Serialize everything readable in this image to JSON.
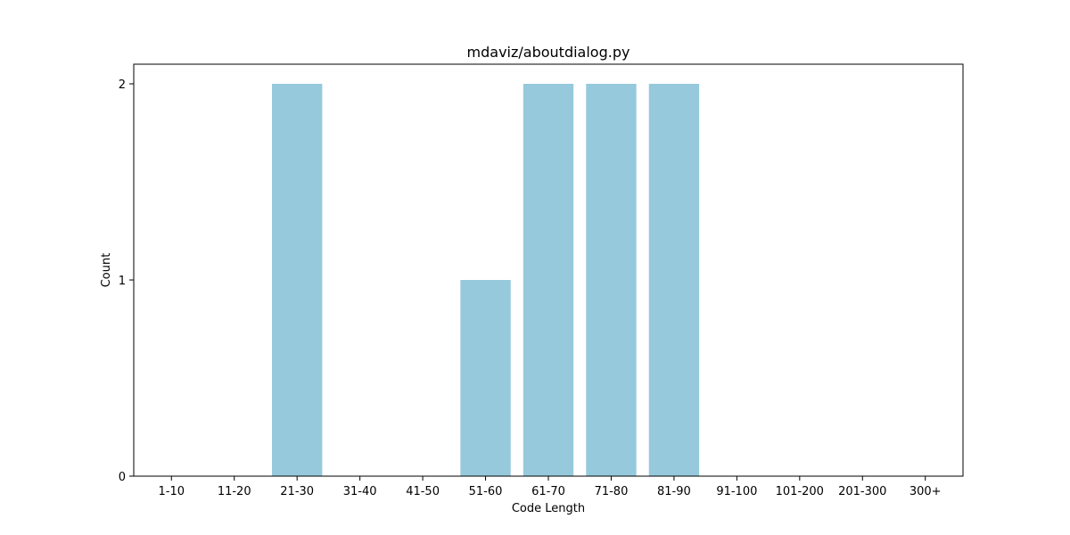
{
  "chart_data": {
    "type": "bar",
    "title": "mdaviz/aboutdialog.py",
    "xlabel": "Code Length",
    "ylabel": "Count",
    "categories": [
      "1-10",
      "11-20",
      "21-30",
      "31-40",
      "41-50",
      "51-60",
      "61-70",
      "71-80",
      "81-90",
      "91-100",
      "101-200",
      "201-300",
      "300+"
    ],
    "values": [
      0,
      0,
      2,
      0,
      0,
      1,
      2,
      2,
      2,
      0,
      0,
      0,
      0
    ],
    "ylim": [
      0,
      2.1
    ],
    "yticks": [
      0,
      1,
      2
    ],
    "bar_color": "#96c9dc",
    "grid": false,
    "legend": "none"
  }
}
